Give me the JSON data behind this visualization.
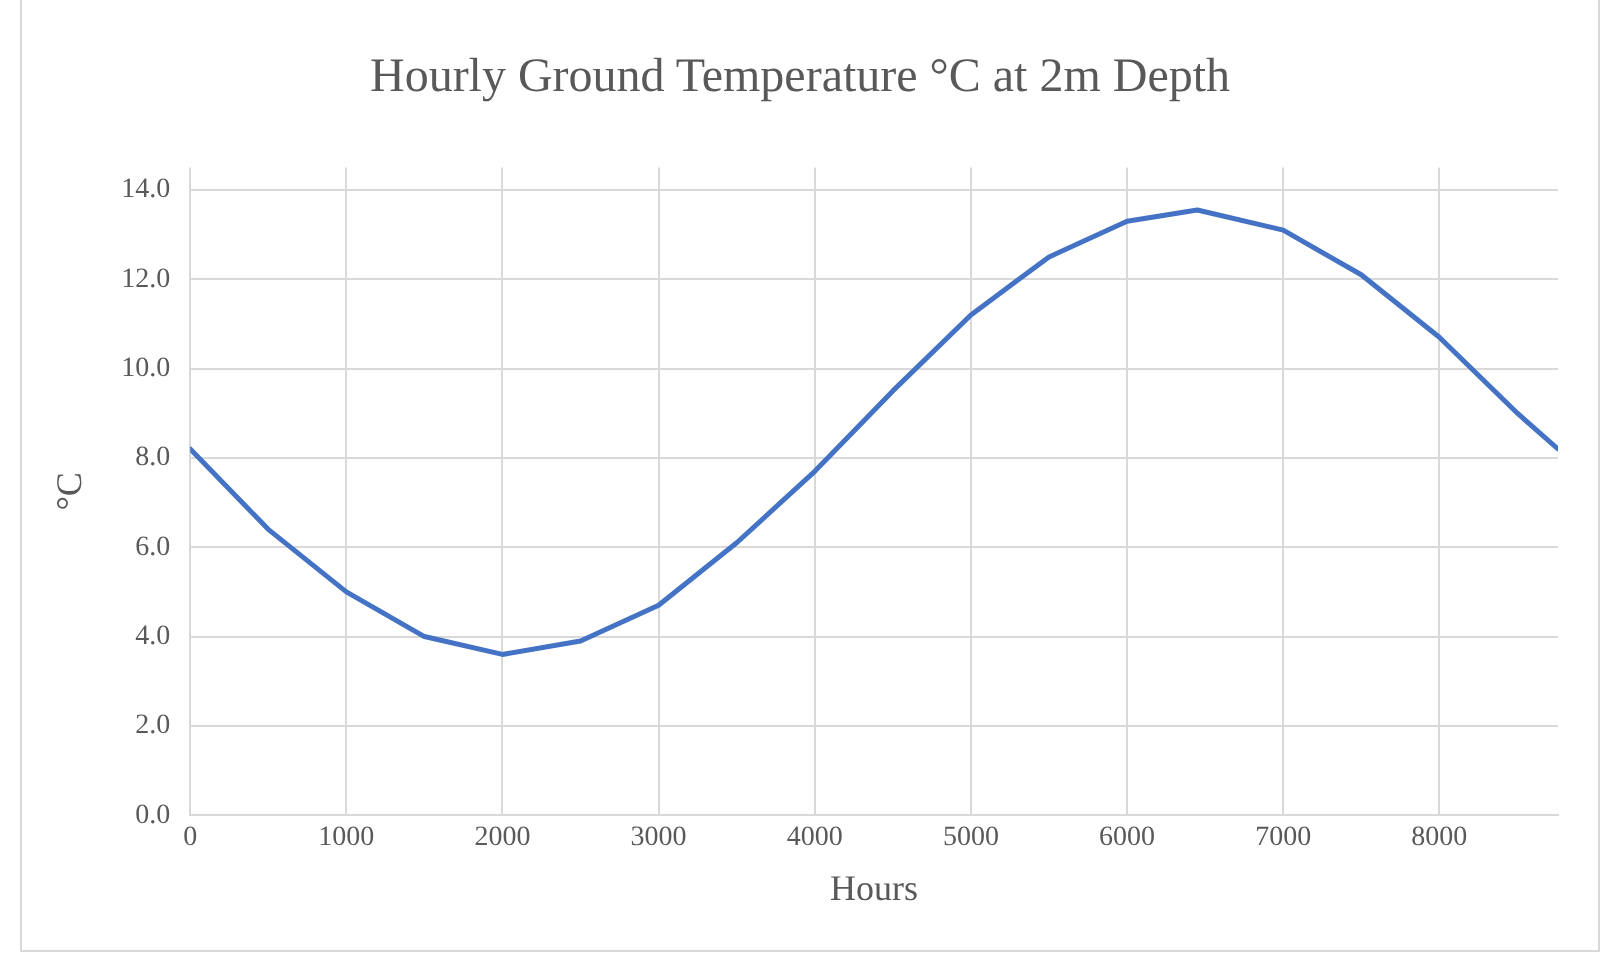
{
  "chart_data": {
    "type": "line",
    "title": "Hourly Ground Temperature °C at 2m Depth",
    "xlabel": "Hours",
    "ylabel": "°C",
    "x": [
      0,
      500,
      1000,
      1500,
      2000,
      2500,
      3000,
      3500,
      4000,
      4500,
      5000,
      5500,
      6000,
      6450,
      7000,
      7500,
      8000,
      8500,
      8760
    ],
    "series": [
      {
        "color": "#4472c4",
        "values": [
          8.2,
          6.4,
          5.0,
          4.0,
          3.6,
          3.9,
          4.7,
          6.1,
          7.7,
          9.5,
          11.2,
          12.5,
          13.3,
          13.55,
          13.1,
          12.1,
          10.7,
          9.0,
          8.2
        ]
      }
    ],
    "xlim": [
      0,
      8760
    ],
    "xticks": [
      0,
      1000,
      2000,
      3000,
      4000,
      5000,
      6000,
      7000,
      8000
    ],
    "ylim": [
      0,
      14.5
    ],
    "yticks": [
      {
        "value": 0,
        "label": "0.0"
      },
      {
        "value": 2,
        "label": "2.0"
      },
      {
        "value": 4,
        "label": "4.0"
      },
      {
        "value": 6,
        "label": "6.0"
      },
      {
        "value": 8,
        "label": "8.0"
      },
      {
        "value": 10,
        "label": "10.0"
      },
      {
        "value": 12,
        "label": "12.0"
      },
      {
        "value": 14,
        "label": "14.0"
      }
    ],
    "grid": true,
    "legend": false,
    "marker": "none",
    "line_style": "solid"
  }
}
